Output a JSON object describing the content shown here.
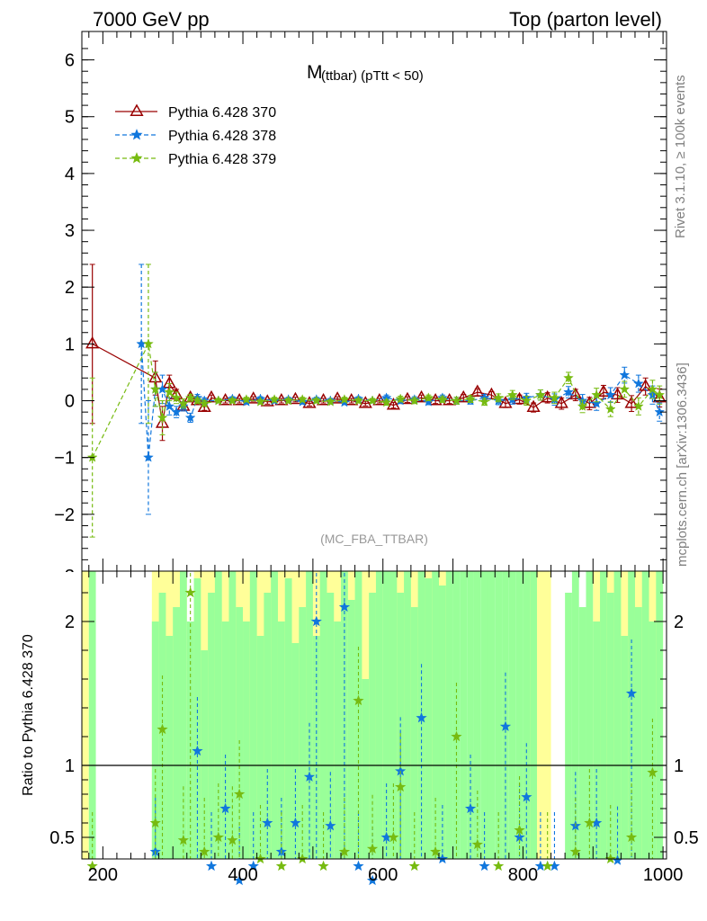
{
  "header": {
    "left": "7000 GeV pp",
    "right": "Top (parton level)"
  },
  "side_labels": {
    "rivet": "Rivet 3.1.10, ≥ 100k events",
    "mcplots": "mcplots.cern.ch [arXiv:1306.3436]"
  },
  "colors": {
    "pythia370": "#990000",
    "pythia378": "#1177dd",
    "pythia379": "#77bb11",
    "band_yellow": "#ffff99",
    "band_green": "#99ff99"
  },
  "chart_data": [
    {
      "type": "line",
      "title_main": "M",
      "title_sub": "(ttbar) (pTtt < 50)",
      "watermark": "(MC_FBA_TTBAR)",
      "xlabel": "",
      "ylabel": "",
      "xlim": [
        170,
        1005
      ],
      "ylim": [
        -3,
        6.5
      ],
      "yticks": [
        "−2",
        "−1",
        "0",
        "1",
        "2",
        "3",
        "4",
        "5",
        "6"
      ],
      "ytick_values": [
        -2,
        -1,
        0,
        1,
        2,
        3,
        4,
        5,
        6
      ],
      "grid": false,
      "legend_position": "top-left",
      "series": [
        {
          "name": "Pythia 6.428 370",
          "color": "#990000",
          "marker": "triangle",
          "line": "solid",
          "x": [
            185,
            275,
            285,
            295,
            305,
            315,
            325,
            335,
            345,
            355,
            375,
            395,
            415,
            435,
            455,
            475,
            495,
            515,
            535,
            555,
            575,
            595,
            615,
            635,
            655,
            675,
            695,
            715,
            735,
            755,
            775,
            795,
            815,
            835,
            855,
            875,
            895,
            915,
            935,
            955,
            975,
            995
          ],
          "y": [
            1.0,
            0.4,
            -0.4,
            0.3,
            0.1,
            -0.1,
            0.05,
            0.0,
            -0.12,
            0.05,
            0.0,
            0.0,
            0.03,
            -0.02,
            0.0,
            0.02,
            -0.05,
            0.0,
            0.03,
            0.0,
            -0.05,
            0.0,
            -0.08,
            0.02,
            0.05,
            0.0,
            0.0,
            0.05,
            0.15,
            0.1,
            -0.05,
            0.02,
            -0.12,
            0.05,
            -0.05,
            0.1,
            -0.05,
            0.15,
            0.1,
            -0.05,
            0.25,
            0.05
          ],
          "err": [
            1.4,
            0.3,
            0.3,
            0.15,
            0.1,
            0.08,
            0.06,
            0.05,
            0.05,
            0.05,
            0.04,
            0.04,
            0.04,
            0.04,
            0.04,
            0.04,
            0.04,
            0.04,
            0.04,
            0.04,
            0.04,
            0.04,
            0.05,
            0.05,
            0.05,
            0.05,
            0.05,
            0.06,
            0.06,
            0.06,
            0.07,
            0.08,
            0.08,
            0.09,
            0.1,
            0.1,
            0.11,
            0.12,
            0.13,
            0.14,
            0.15,
            0.16
          ]
        },
        {
          "name": "Pythia 6.428 378",
          "color": "#1177dd",
          "marker": "star",
          "line": "dashed",
          "x": [
            255,
            265,
            275,
            285,
            295,
            305,
            315,
            325,
            335,
            345,
            365,
            385,
            405,
            425,
            445,
            465,
            485,
            505,
            525,
            545,
            565,
            585,
            605,
            625,
            645,
            665,
            685,
            705,
            725,
            745,
            765,
            785,
            805,
            825,
            845,
            865,
            885,
            905,
            925,
            945,
            965,
            985,
            995
          ],
          "y": [
            1.0,
            -1.0,
            0.2,
            0.2,
            -0.1,
            -0.2,
            -0.1,
            -0.3,
            0.05,
            0.0,
            0.0,
            0.03,
            -0.02,
            0.03,
            0.0,
            0.02,
            -0.02,
            0.02,
            0.0,
            -0.03,
            0.03,
            0.0,
            0.05,
            0.0,
            0.02,
            -0.02,
            0.05,
            0.0,
            0.0,
            0.05,
            0.0,
            0.02,
            0.05,
            0.1,
            0.02,
            0.15,
            0.0,
            -0.05,
            0.1,
            0.45,
            0.3,
            0.1,
            -0.2
          ],
          "err": [
            1.4,
            1.0,
            0.3,
            0.25,
            0.15,
            0.1,
            0.08,
            0.08,
            0.06,
            0.05,
            0.04,
            0.04,
            0.04,
            0.04,
            0.04,
            0.04,
            0.04,
            0.04,
            0.04,
            0.04,
            0.04,
            0.04,
            0.05,
            0.05,
            0.05,
            0.05,
            0.05,
            0.06,
            0.06,
            0.06,
            0.07,
            0.08,
            0.08,
            0.09,
            0.1,
            0.1,
            0.11,
            0.12,
            0.13,
            0.14,
            0.15,
            0.16,
            0.16
          ]
        },
        {
          "name": "Pythia 6.428 379",
          "color": "#77bb11",
          "marker": "star",
          "line": "dashed",
          "x": [
            185,
            265,
            275,
            285,
            295,
            305,
            315,
            325,
            335,
            345,
            365,
            385,
            405,
            425,
            445,
            465,
            485,
            505,
            525,
            545,
            565,
            585,
            605,
            625,
            645,
            665,
            685,
            705,
            725,
            745,
            765,
            785,
            805,
            825,
            845,
            865,
            885,
            905,
            925,
            945,
            965,
            985,
            995
          ],
          "y": [
            -1.0,
            1.0,
            0.2,
            -0.3,
            0.15,
            0.05,
            -0.05,
            0.05,
            0.0,
            -0.05,
            0.0,
            0.0,
            0.02,
            -0.02,
            0.02,
            0.0,
            0.02,
            0.0,
            -0.02,
            0.02,
            0.0,
            0.0,
            -0.03,
            0.03,
            0.0,
            0.05,
            0.02,
            0.0,
            0.03,
            -0.02,
            0.05,
            0.1,
            0.0,
            0.1,
            0.05,
            0.4,
            -0.1,
            0.1,
            -0.15,
            0.2,
            -0.1,
            0.2,
            0.1
          ],
          "err": [
            1.4,
            1.4,
            0.3,
            0.3,
            0.15,
            0.1,
            0.08,
            0.06,
            0.05,
            0.05,
            0.04,
            0.04,
            0.04,
            0.04,
            0.04,
            0.04,
            0.04,
            0.04,
            0.04,
            0.04,
            0.04,
            0.04,
            0.05,
            0.05,
            0.05,
            0.05,
            0.05,
            0.06,
            0.06,
            0.06,
            0.07,
            0.08,
            0.08,
            0.09,
            0.1,
            0.1,
            0.11,
            0.12,
            0.13,
            0.14,
            0.15,
            0.16,
            0.16
          ]
        }
      ]
    },
    {
      "type": "line",
      "ylabel": "Ratio to Pythia 6.428 370",
      "xlabel": "",
      "xlim": [
        170,
        1005
      ],
      "ylim": [
        0.35,
        2.35
      ],
      "xticks": [
        "200",
        "400",
        "600",
        "800",
        "1000"
      ],
      "xtick_values": [
        200,
        400,
        600,
        800,
        1000
      ],
      "yticks": [
        "0.5",
        "1",
        "2"
      ],
      "ytick_values": [
        0.5,
        1,
        2
      ],
      "reference_line": 1,
      "bands": {
        "yellow": [
          [
            170,
            180,
            2.35
          ],
          [
            270,
            320,
            2.35
          ],
          [
            330,
            600,
            2.35
          ],
          [
            600,
            700,
            2.35
          ],
          [
            800,
            840,
            2.35
          ],
          [
            900,
            1000,
            2.35
          ]
        ],
        "green_bins": [
          [
            180,
            190,
            0.35,
            2.35
          ],
          [
            270,
            280,
            0.35,
            2.0
          ],
          [
            280,
            290,
            0.35,
            2.2
          ],
          [
            290,
            300,
            0.35,
            1.9
          ],
          [
            300,
            310,
            0.35,
            2.1
          ],
          [
            310,
            320,
            0.35,
            2.35
          ],
          [
            320,
            330,
            0.35,
            2.0
          ],
          [
            330,
            340,
            0.35,
            2.3
          ],
          [
            340,
            350,
            0.35,
            1.8
          ],
          [
            350,
            360,
            0.35,
            2.2
          ],
          [
            360,
            370,
            0.35,
            2.35
          ],
          [
            370,
            380,
            0.35,
            2.0
          ],
          [
            380,
            390,
            0.35,
            2.35
          ],
          [
            390,
            400,
            0.35,
            2.1
          ],
          [
            400,
            410,
            0.35,
            2.0
          ],
          [
            410,
            420,
            0.35,
            2.35
          ],
          [
            420,
            430,
            0.35,
            1.9
          ],
          [
            430,
            440,
            0.35,
            2.2
          ],
          [
            440,
            450,
            0.35,
            2.35
          ],
          [
            450,
            460,
            0.35,
            2.0
          ],
          [
            460,
            470,
            0.35,
            2.3
          ],
          [
            470,
            480,
            0.35,
            1.85
          ],
          [
            480,
            490,
            0.35,
            2.1
          ],
          [
            490,
            500,
            0.35,
            2.35
          ],
          [
            500,
            510,
            0.35,
            1.9
          ],
          [
            510,
            520,
            0.35,
            2.35
          ],
          [
            520,
            530,
            0.35,
            2.2
          ],
          [
            530,
            540,
            0.35,
            2.0
          ],
          [
            540,
            550,
            0.35,
            2.35
          ],
          [
            550,
            560,
            0.35,
            2.15
          ],
          [
            560,
            570,
            0.35,
            2.35
          ],
          [
            570,
            580,
            0.35,
            1.6
          ],
          [
            580,
            590,
            0.35,
            2.2
          ],
          [
            590,
            600,
            0.35,
            2.35
          ],
          [
            600,
            610,
            0.35,
            2.35
          ],
          [
            610,
            620,
            0.35,
            2.35
          ],
          [
            620,
            630,
            0.35,
            2.2
          ],
          [
            630,
            640,
            0.35,
            2.35
          ],
          [
            640,
            650,
            0.35,
            2.1
          ],
          [
            650,
            660,
            0.35,
            2.35
          ],
          [
            660,
            670,
            0.35,
            2.3
          ],
          [
            670,
            680,
            0.35,
            2.35
          ],
          [
            680,
            690,
            0.35,
            2.25
          ],
          [
            690,
            700,
            0.35,
            2.35
          ],
          [
            700,
            710,
            0.35,
            2.35
          ],
          [
            710,
            720,
            0.35,
            2.35
          ],
          [
            720,
            730,
            0.35,
            2.35
          ],
          [
            730,
            740,
            0.35,
            2.35
          ],
          [
            740,
            750,
            0.35,
            2.35
          ],
          [
            750,
            760,
            0.35,
            2.35
          ],
          [
            760,
            770,
            0.35,
            2.35
          ],
          [
            770,
            780,
            0.35,
            2.35
          ],
          [
            780,
            790,
            0.35,
            2.35
          ],
          [
            790,
            800,
            0.35,
            2.35
          ],
          [
            800,
            810,
            0.35,
            2.35
          ],
          [
            810,
            820,
            0.35,
            2.35
          ],
          [
            860,
            870,
            0.35,
            2.2
          ],
          [
            870,
            880,
            0.35,
            2.35
          ],
          [
            880,
            890,
            0.35,
            2.1
          ],
          [
            890,
            900,
            0.35,
            2.35
          ],
          [
            900,
            910,
            0.35,
            2.0
          ],
          [
            910,
            920,
            0.35,
            2.35
          ],
          [
            920,
            930,
            0.35,
            2.2
          ],
          [
            930,
            940,
            0.35,
            2.35
          ],
          [
            940,
            950,
            0.35,
            1.9
          ],
          [
            950,
            960,
            0.35,
            2.35
          ],
          [
            960,
            970,
            0.35,
            2.1
          ],
          [
            970,
            980,
            0.35,
            2.35
          ],
          [
            980,
            990,
            0.35,
            2.0
          ],
          [
            990,
            1000,
            0.35,
            2.35
          ]
        ]
      },
      "series": [
        {
          "name": "Pythia 6.428 378",
          "color": "#1177dd",
          "x": [
            275,
            335,
            355,
            375,
            395,
            415,
            435,
            455,
            475,
            495,
            505,
            525,
            545,
            565,
            585,
            605,
            625,
            655,
            685,
            725,
            745,
            775,
            795,
            805,
            825,
            845,
            875,
            905,
            935,
            955
          ],
          "y": [
            0.4,
            1.1,
            0.3,
            0.7,
            0.2,
            0.3,
            0.6,
            0.4,
            0.6,
            0.92,
            2.0,
            0.58,
            2.1,
            0.3,
            0.2,
            0.5,
            0.96,
            1.33,
            0.35,
            0.7,
            0.3,
            1.27,
            0.5,
            0.78,
            0.3,
            0.3,
            0.58,
            0.6,
            0.34,
            1.5
          ]
        },
        {
          "name": "Pythia 6.428 379",
          "color": "#77bb11",
          "x": [
            185,
            275,
            285,
            315,
            325,
            345,
            365,
            385,
            395,
            425,
            455,
            485,
            515,
            545,
            565,
            585,
            615,
            625,
            645,
            675,
            705,
            735,
            765,
            795,
            835,
            875,
            895,
            925,
            955,
            985
          ],
          "y": [
            0.3,
            0.6,
            1.25,
            0.48,
            2.2,
            0.4,
            0.5,
            0.48,
            0.8,
            0.35,
            0.3,
            0.35,
            0.3,
            0.4,
            1.45,
            0.42,
            0.5,
            0.85,
            0.3,
            0.4,
            1.2,
            0.45,
            0.3,
            0.55,
            0.3,
            0.4,
            0.6,
            0.35,
            0.5,
            0.95
          ]
        }
      ]
    }
  ]
}
